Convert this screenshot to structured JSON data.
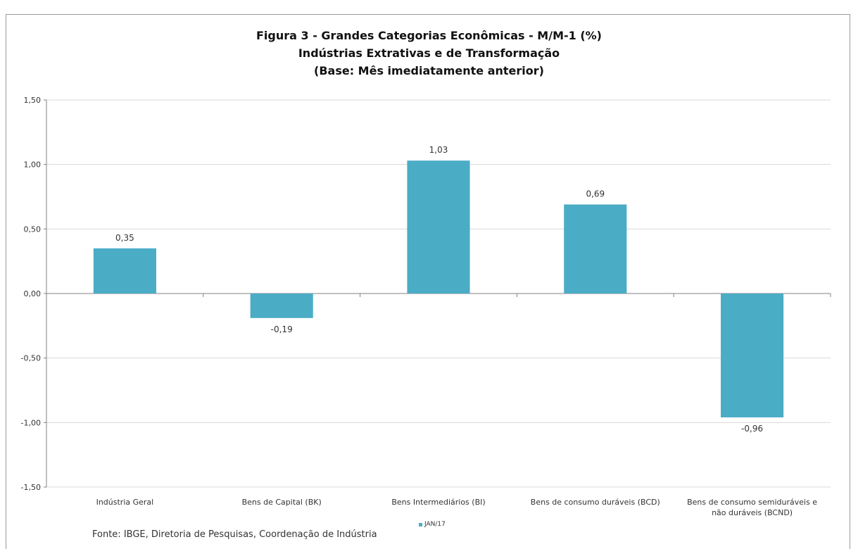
{
  "chart_data": {
    "type": "bar",
    "title_lines": [
      "Figura 3 - Grandes Categorias Econômicas - M/M-1 (%)",
      "Indústrias  Extrativas e de Transformação",
      "(Base: Mês imediatamente anterior)"
    ],
    "categories": [
      [
        "Indústria Geral"
      ],
      [
        "Bens de Capital (BK)"
      ],
      [
        "Bens Intermediários (BI)"
      ],
      [
        "Bens de consumo duráveis (BCD)"
      ],
      [
        "Bens de consumo semiduráveis e",
        "não duráveis (BCND)"
      ]
    ],
    "series": [
      {
        "name": "JAN/17",
        "values": [
          0.35,
          -0.19,
          1.03,
          0.69,
          -0.96
        ]
      }
    ],
    "value_labels": [
      "0,35",
      "-0,19",
      "1,03",
      "0,69",
      "-0,96"
    ],
    "ylim": [
      -1.5,
      1.5
    ],
    "yticks": [
      1.5,
      1.0,
      0.5,
      0.0,
      -0.5,
      -1.0,
      -1.5
    ],
    "ytick_labels": [
      "1,50",
      "1,00",
      "0,50",
      "0,00",
      "-0,50",
      "-1,00",
      "-1,50"
    ],
    "grid": true,
    "legend_position": "bottom-center",
    "bar_color": "#4bacc6",
    "source": "Fonte: IBGE, Diretoria de Pesquisas, Coordenação de Indústria"
  }
}
